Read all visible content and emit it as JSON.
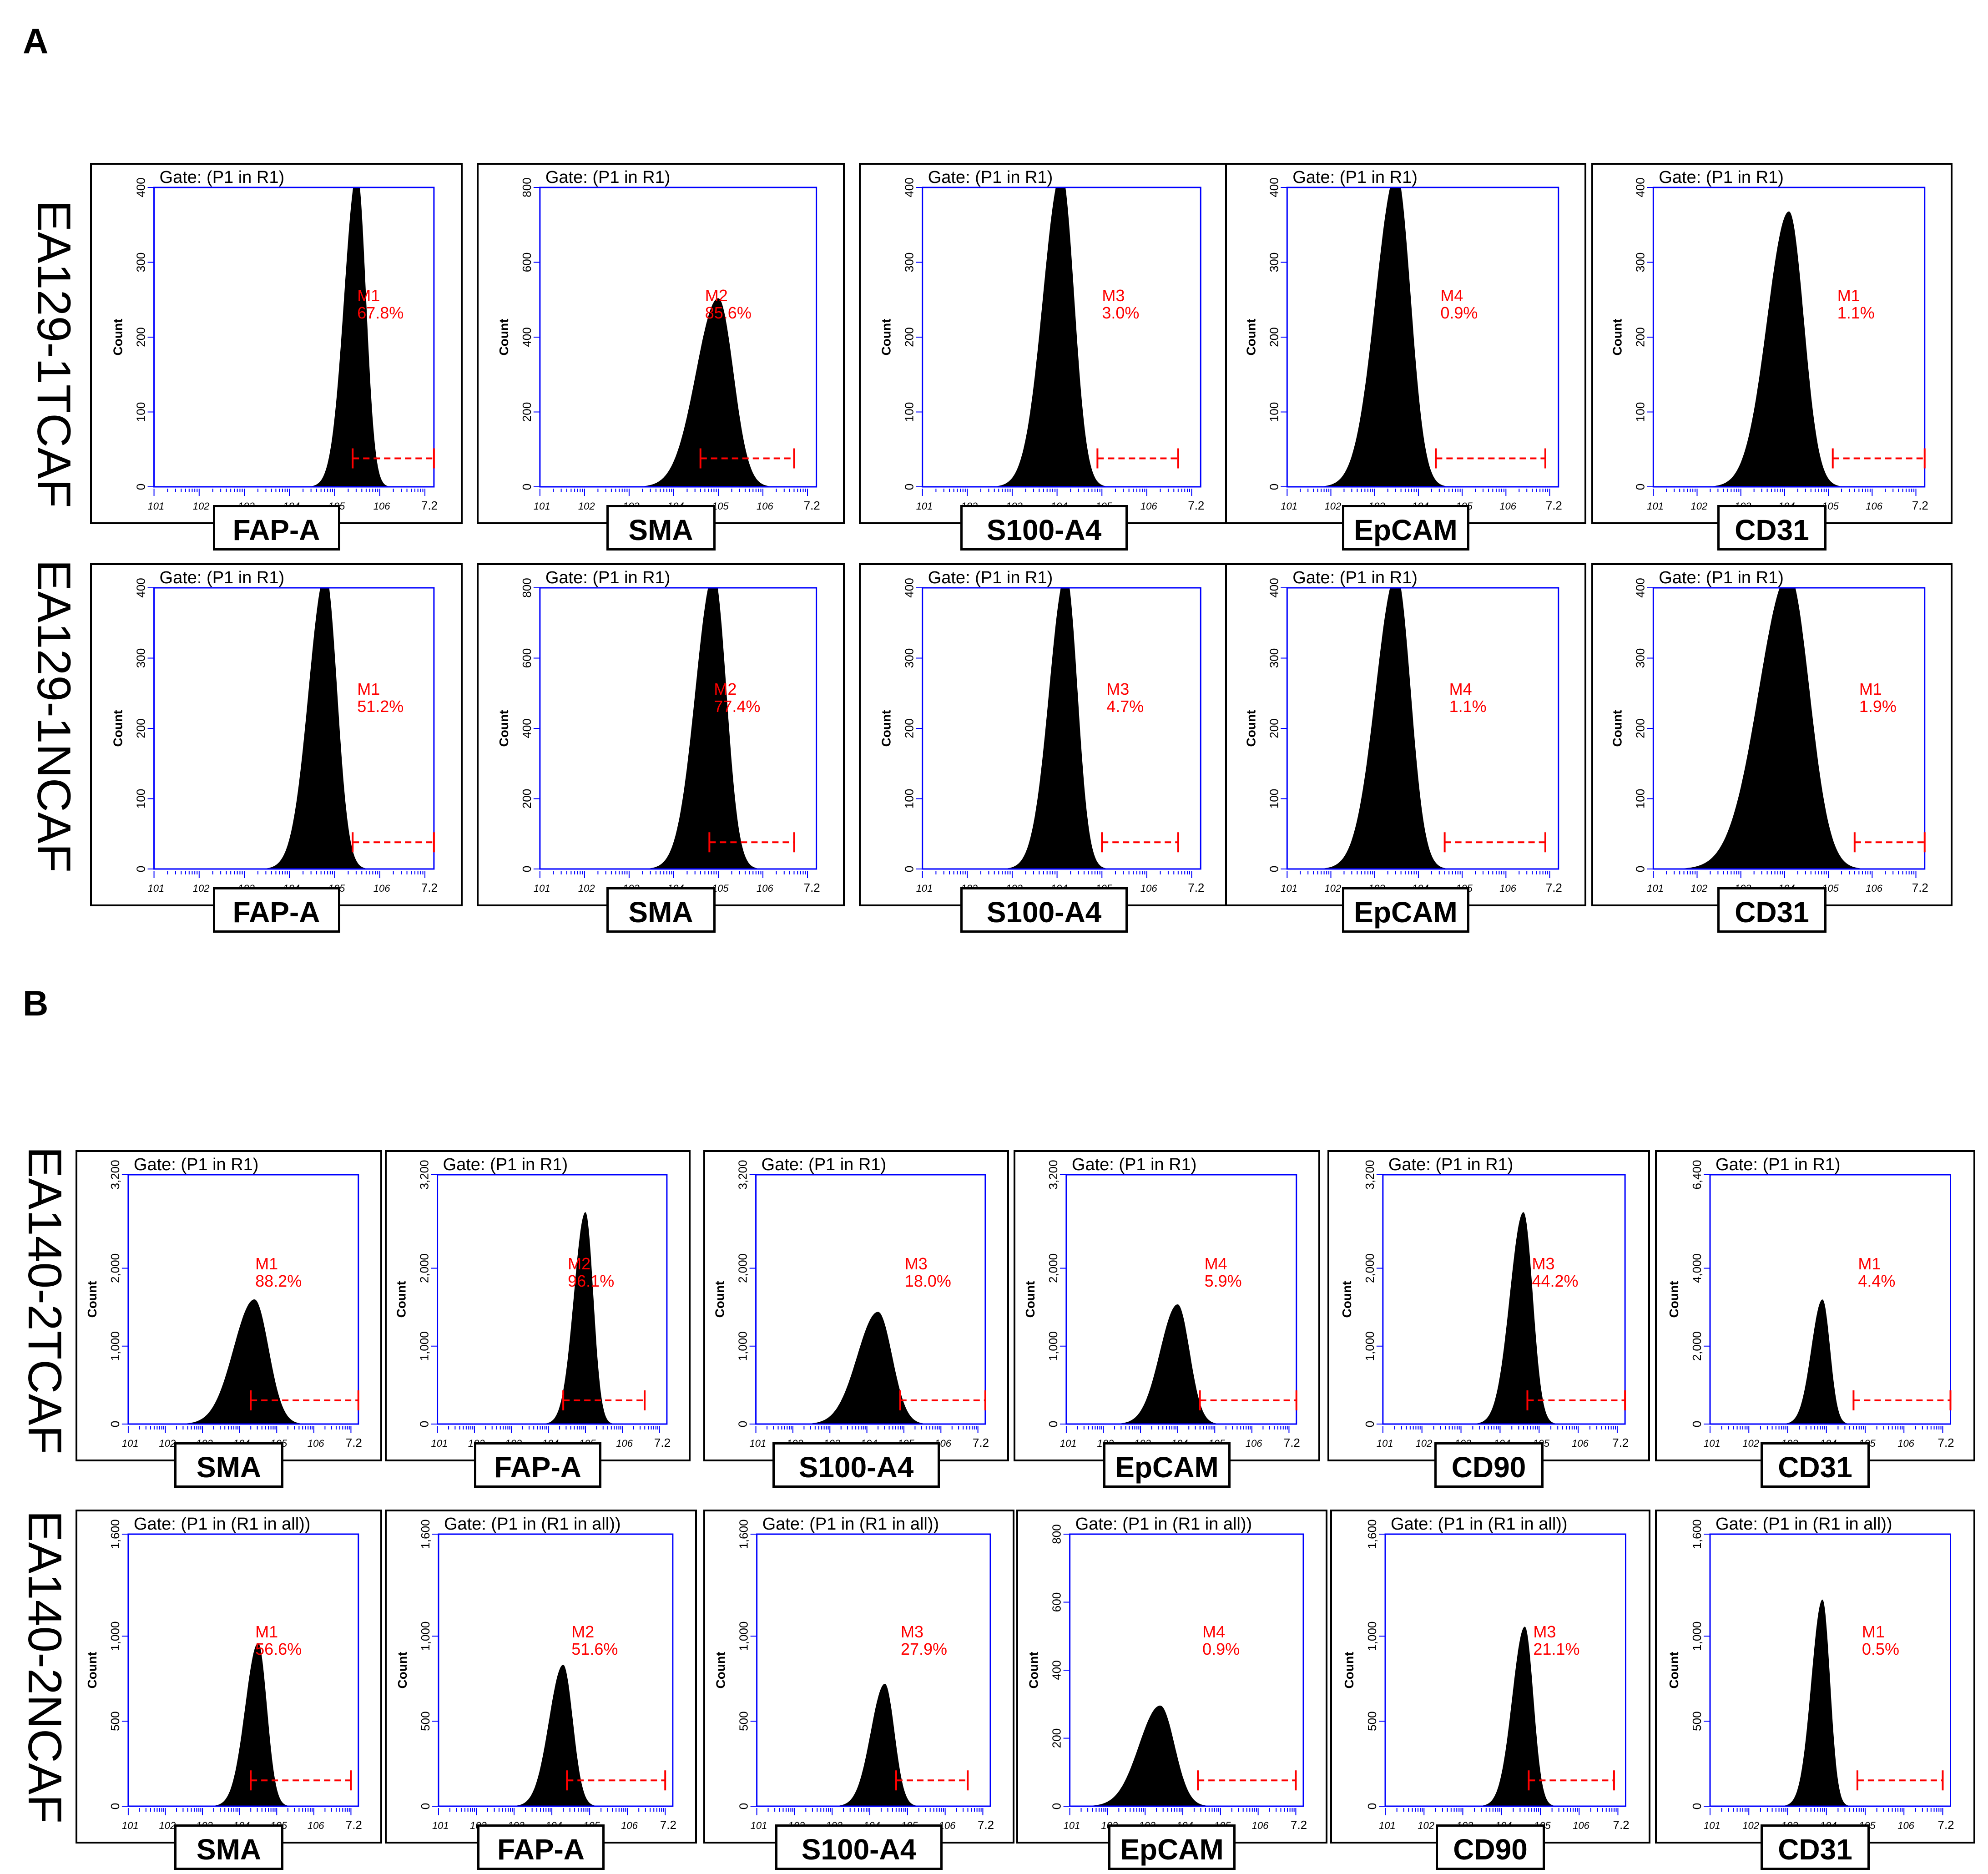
{
  "panel_labels": {
    "a": "A",
    "b": "B"
  },
  "row_labels": [
    "EA129-1TCAF",
    "EA129-1NCAF",
    "EA140-2TCAF",
    "EA140-2NCAF"
  ],
  "colors": {
    "axis": "#0000ff",
    "histogram": "#000000",
    "marker": "#ff0000",
    "frame": "#000000"
  },
  "axis_text": {
    "ylabel": "Count",
    "x_max_label": "7.2"
  },
  "chart_data": [
    {
      "type": "histogram",
      "row": 0,
      "title": "Gate: (P1 in R1)",
      "marker": "FAP-A",
      "ymax": 400,
      "yticks": [
        "0",
        "100",
        "200",
        "300",
        "400"
      ],
      "peak_log": 5.5,
      "width": 0.23,
      "height": 1.05,
      "gate": {
        "label": "M1",
        "value": "67.8%",
        "range": [
          5.4,
          7.2
        ]
      }
    },
    {
      "type": "histogram",
      "row": 0,
      "title": "Gate: (P1 in R1)",
      "marker": "SMA",
      "ymax": 800,
      "yticks": [
        "0",
        "200",
        "400",
        "600",
        "800"
      ],
      "peak_log": 5.0,
      "width": 0.4,
      "height": 0.63,
      "gate": {
        "label": "M2",
        "value": "85.6%",
        "range": [
          4.6,
          6.7
        ]
      }
    },
    {
      "type": "histogram",
      "row": 0,
      "title": "Gate: (P1 in R1)",
      "marker": "S100-A4",
      "ymax": 400,
      "yticks": [
        "0",
        "100",
        "200",
        "300",
        "400"
      ],
      "peak_log": 4.1,
      "width": 0.33,
      "height": 1.05,
      "gate": {
        "label": "M3",
        "value": "3.0%",
        "range": [
          4.9,
          6.7
        ]
      }
    },
    {
      "type": "histogram",
      "row": 0,
      "title": "Gate: (P1 in R1)",
      "marker": "EpCAM",
      "ymax": 400,
      "yticks": [
        "0",
        "100",
        "200",
        "300",
        "400"
      ],
      "peak_log": 3.5,
      "width": 0.38,
      "height": 1.05,
      "gate": {
        "label": "M4",
        "value": "0.9%",
        "range": [
          4.4,
          6.9
        ]
      }
    },
    {
      "type": "histogram",
      "row": 0,
      "title": "Gate: (P1 in R1)",
      "marker": "CD31",
      "ymax": 400,
      "yticks": [
        "0",
        "100",
        "200",
        "300",
        "400"
      ],
      "peak_log": 4.1,
      "width": 0.4,
      "height": 0.92,
      "gate": {
        "label": "M1",
        "value": "1.1%",
        "range": [
          5.1,
          7.2
        ]
      }
    },
    {
      "type": "histogram",
      "row": 1,
      "title": "Gate: (P1 in R1)",
      "marker": "FAP-A",
      "ymax": 400,
      "yticks": [
        "0",
        "100",
        "200",
        "300",
        "400"
      ],
      "peak_log": 4.8,
      "width": 0.3,
      "height": 1.05,
      "gate": {
        "label": "M1",
        "value": "51.2%",
        "range": [
          5.4,
          7.2
        ]
      }
    },
    {
      "type": "histogram",
      "row": 1,
      "title": "Gate: (P1 in R1)",
      "marker": "SMA",
      "ymax": 800,
      "yticks": [
        "0",
        "200",
        "400",
        "600",
        "800"
      ],
      "peak_log": 4.9,
      "width": 0.33,
      "height": 1.05,
      "gate": {
        "label": "M2",
        "value": "77.4%",
        "range": [
          4.8,
          6.7
        ]
      }
    },
    {
      "type": "histogram",
      "row": 1,
      "title": "Gate: (P1 in R1)",
      "marker": "S100-A4",
      "ymax": 400,
      "yticks": [
        "0",
        "100",
        "200",
        "300",
        "400"
      ],
      "peak_log": 4.2,
      "width": 0.3,
      "height": 1.05,
      "gate": {
        "label": "M3",
        "value": "4.7%",
        "range": [
          5.0,
          6.7
        ]
      }
    },
    {
      "type": "histogram",
      "row": 1,
      "title": "Gate: (P1 in R1)",
      "marker": "EpCAM",
      "ymax": 400,
      "yticks": [
        "0",
        "100",
        "200",
        "300",
        "400"
      ],
      "peak_log": 3.5,
      "width": 0.38,
      "height": 1.05,
      "gate": {
        "label": "M4",
        "value": "1.1%",
        "range": [
          4.6,
          6.9
        ]
      }
    },
    {
      "type": "histogram",
      "row": 1,
      "title": "Gate: (P1 in R1)",
      "marker": "CD31",
      "ymax": 400,
      "yticks": [
        "0",
        "100",
        "200",
        "300",
        "400"
      ],
      "peak_log": 4.1,
      "width": 0.55,
      "height": 1.05,
      "gate": {
        "label": "M1",
        "value": "1.9%",
        "range": [
          5.6,
          7.2
        ]
      }
    },
    {
      "type": "histogram",
      "row": 2,
      "title": "Gate: (P1 in R1)",
      "marker": "SMA",
      "ymax": 3200,
      "yticks": [
        "0",
        "1,000",
        "2,000",
        "3,200"
      ],
      "ytick_values": [
        0,
        1000,
        2000,
        3200
      ],
      "peak_log": 4.4,
      "width": 0.45,
      "height": 0.5,
      "gate": {
        "label": "M1",
        "value": "88.2%",
        "range": [
          4.3,
          7.2
        ]
      }
    },
    {
      "type": "histogram",
      "row": 2,
      "title": "Gate: (P1 in R1)",
      "marker": "FAP-A",
      "ymax": 3200,
      "yticks": [
        "0",
        "1,000",
        "2,000",
        "3,200"
      ],
      "ytick_values": [
        0,
        1000,
        2000,
        3200
      ],
      "peak_log": 5.0,
      "width": 0.25,
      "height": 0.85,
      "gate": {
        "label": "M2",
        "value": "96.1%",
        "range": [
          4.4,
          6.6
        ]
      }
    },
    {
      "type": "histogram",
      "row": 2,
      "title": "Gate: (P1 in R1)",
      "marker": "S100-A4",
      "ymax": 3200,
      "yticks": [
        "0",
        "1,000",
        "2,000",
        "3,200"
      ],
      "ytick_values": [
        0,
        1000,
        2000,
        3200
      ],
      "peak_log": 4.3,
      "width": 0.45,
      "height": 0.45,
      "gate": {
        "label": "M3",
        "value": "18.0%",
        "range": [
          4.9,
          7.2
        ]
      }
    },
    {
      "type": "histogram",
      "row": 2,
      "title": "Gate: (P1 in R1)",
      "marker": "EpCAM",
      "ymax": 3200,
      "yticks": [
        "0",
        "1,000",
        "2,000",
        "3,200"
      ],
      "ytick_values": [
        0,
        1000,
        2000,
        3200
      ],
      "peak_log": 4.0,
      "width": 0.38,
      "height": 0.48,
      "gate": {
        "label": "M4",
        "value": "5.9%",
        "range": [
          4.6,
          7.2
        ]
      }
    },
    {
      "type": "histogram",
      "row": 2,
      "title": "Gate: (P1 in R1)",
      "marker": "CD90",
      "ymax": 3200,
      "yticks": [
        "0",
        "1,000",
        "2,000",
        "3,200"
      ],
      "ytick_values": [
        0,
        1000,
        2000,
        3200
      ],
      "peak_log": 4.6,
      "width": 0.28,
      "height": 0.85,
      "gate": {
        "label": "M3",
        "value": "44.2%",
        "range": [
          4.7,
          7.2
        ]
      }
    },
    {
      "type": "histogram",
      "row": 2,
      "title": "Gate: (P1 in R1)",
      "marker": "CD31",
      "ymax": 6400,
      "yticks": [
        "0",
        "2,000",
        "4,000",
        "6,400"
      ],
      "ytick_values": [
        0,
        2000,
        4000,
        6400
      ],
      "peak_log": 3.9,
      "width": 0.23,
      "height": 0.5,
      "gate": {
        "label": "M1",
        "value": "4.4%",
        "range": [
          4.7,
          7.2
        ]
      }
    },
    {
      "type": "histogram",
      "row": 3,
      "title": "Gate: (P1 in (R1 in all))",
      "marker": "SMA",
      "ymax": 1600,
      "yticks": [
        "0",
        "500",
        "1,000",
        "1,600"
      ],
      "ytick_values": [
        0,
        500,
        1000,
        1600
      ],
      "peak_log": 4.5,
      "width": 0.28,
      "height": 0.6,
      "gate": {
        "label": "M1",
        "value": "56.6%",
        "range": [
          4.3,
          7.0
        ]
      }
    },
    {
      "type": "histogram",
      "row": 3,
      "title": "Gate: (P1 in (R1 in all))",
      "marker": "FAP-A",
      "ymax": 1600,
      "yticks": [
        "0",
        "500",
        "1,000",
        "1,600"
      ],
      "ytick_values": [
        0,
        500,
        1000,
        1600
      ],
      "peak_log": 4.3,
      "width": 0.3,
      "height": 0.52,
      "gate": {
        "label": "M2",
        "value": "51.6%",
        "range": [
          4.4,
          7.0
        ]
      }
    },
    {
      "type": "histogram",
      "row": 3,
      "title": "Gate: (P1 in (R1 in all))",
      "marker": "S100-A4",
      "ymax": 1600,
      "yticks": [
        "0",
        "500",
        "1,000",
        "1,600"
      ],
      "ytick_values": [
        0,
        500,
        1000,
        1600
      ],
      "peak_log": 4.4,
      "width": 0.3,
      "height": 0.45,
      "gate": {
        "label": "M3",
        "value": "27.9%",
        "range": [
          4.7,
          6.6
        ]
      }
    },
    {
      "type": "histogram",
      "row": 3,
      "title": "Gate: (P1 in (R1 in all))",
      "marker": "EpCAM",
      "ymax": 800,
      "yticks": [
        "0",
        "200",
        "400",
        "600",
        "800"
      ],
      "peak_log": 3.4,
      "width": 0.45,
      "height": 0.37,
      "gate": {
        "label": "M4",
        "value": "0.9%",
        "range": [
          4.4,
          7.0
        ]
      }
    },
    {
      "type": "histogram",
      "row": 3,
      "title": "Gate: (P1 in (R1 in all))",
      "marker": "CD90",
      "ymax": 1600,
      "yticks": [
        "0",
        "500",
        "1,000",
        "1,600"
      ],
      "ytick_values": [
        0,
        500,
        1000,
        1600
      ],
      "peak_log": 4.6,
      "width": 0.26,
      "height": 0.66,
      "gate": {
        "label": "M3",
        "value": "21.1%",
        "range": [
          4.7,
          6.9
        ]
      }
    },
    {
      "type": "histogram",
      "row": 3,
      "title": "Gate: (P1 in (R1 in all))",
      "marker": "CD31",
      "ymax": 1600,
      "yticks": [
        "0",
        "500",
        "1,000",
        "1,600"
      ],
      "ytick_values": [
        0,
        500,
        1000,
        1600
      ],
      "peak_log": 3.9,
      "width": 0.23,
      "height": 0.76,
      "gate": {
        "label": "M1",
        "value": "0.5%",
        "range": [
          4.8,
          7.0
        ]
      }
    }
  ]
}
